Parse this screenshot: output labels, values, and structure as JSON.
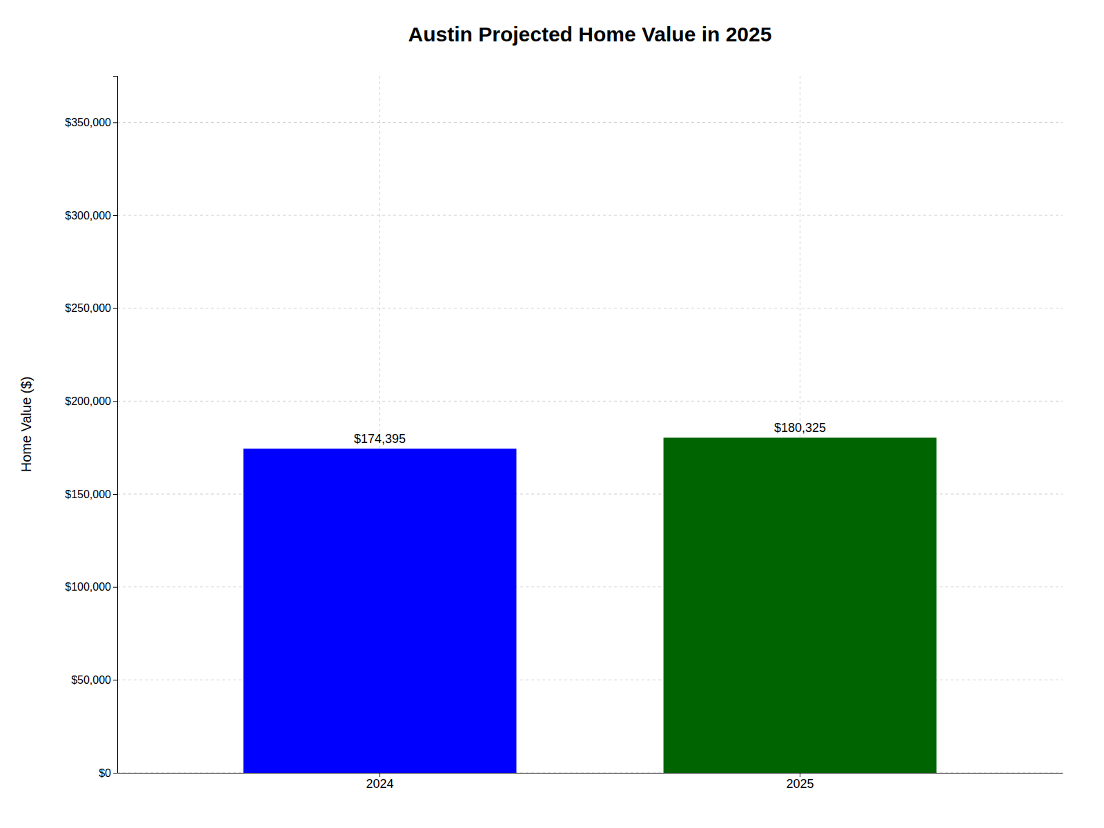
{
  "chart_data": {
    "type": "bar",
    "title": "Austin Projected Home Value in 2025",
    "categories": [
      "2024",
      "2025"
    ],
    "values": [
      174395,
      180325
    ],
    "value_labels": [
      "$174,395",
      "$180,325"
    ],
    "data_labels": true,
    "colors": [
      "#0000ff",
      "#006400"
    ],
    "ylabel": "Home Value ($)",
    "ylim": [
      0,
      375000
    ],
    "yticks": [
      {
        "value": 0,
        "label": "$0"
      },
      {
        "value": 50000,
        "label": "$50,000"
      },
      {
        "value": 100000,
        "label": "$100,000"
      },
      {
        "value": 150000,
        "label": "$150,000"
      },
      {
        "value": 200000,
        "label": "$200,000"
      },
      {
        "value": 250000,
        "label": "$250,000"
      },
      {
        "value": 300000,
        "label": "$300,000"
      },
      {
        "value": 350000,
        "label": "$350,000"
      }
    ],
    "grid": true
  }
}
